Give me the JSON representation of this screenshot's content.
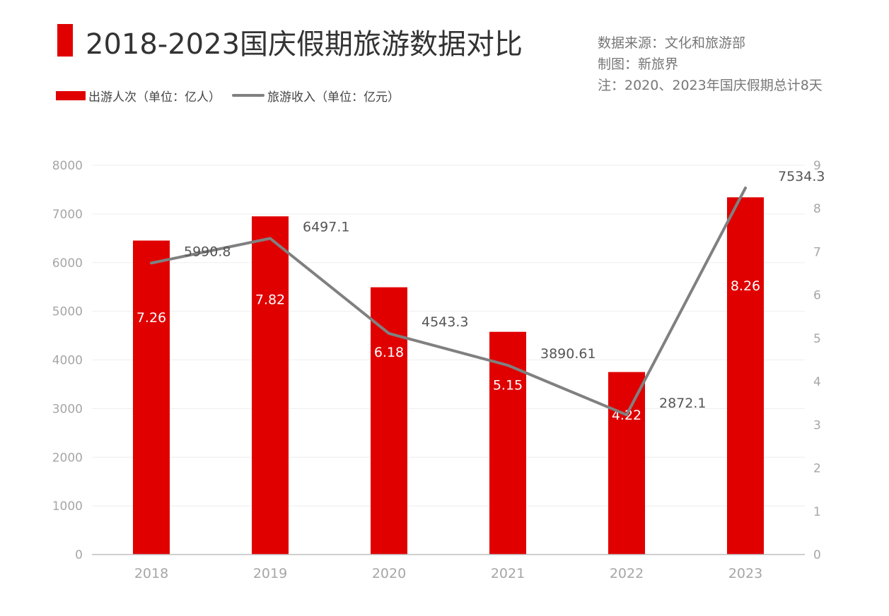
{
  "header": {
    "title": "2018-2023国庆假期旅游数据对比",
    "notes": [
      "数据来源：文化和旅游部",
      "制图：新旅界",
      "注：2020、2023年国庆假期总计8天"
    ]
  },
  "colors": {
    "bar": "#e00000",
    "line": "#808080",
    "axis_text": "#a6a6a6",
    "grid": "#eeeeee",
    "value_label": "#555555",
    "bar_label": "#ffffff"
  },
  "chart_data": {
    "type": "bar",
    "title": "2018-2023国庆假期旅游数据对比",
    "categories": [
      "2018",
      "2019",
      "2020",
      "2021",
      "2022",
      "2023"
    ],
    "series": [
      {
        "name": "出游人次（单位：亿人）",
        "type": "bar",
        "axis": "right",
        "values": [
          7.26,
          7.82,
          6.18,
          5.15,
          4.22,
          8.26
        ],
        "labels": [
          "7.26",
          "7.82",
          "6.18",
          "5.15",
          "4.22",
          "8.26"
        ]
      },
      {
        "name": "旅游收入（单位：亿元）",
        "type": "line",
        "axis": "left",
        "values": [
          5990.8,
          6497.1,
          4543.3,
          3890.61,
          2872.1,
          7534.3
        ],
        "labels": [
          "5990.8",
          "6497.1",
          "4543.3",
          "3890.61",
          "2872.1",
          "7534.3"
        ]
      }
    ],
    "left_axis": {
      "min": 0,
      "max": 8000,
      "ticks": [
        "0",
        "1000",
        "2000",
        "3000",
        "4000",
        "5000",
        "6000",
        "7000",
        "8000"
      ]
    },
    "right_axis": {
      "min": 0,
      "max": 9,
      "ticks": [
        "0",
        "1",
        "2",
        "3",
        "4",
        "5",
        "6",
        "7",
        "8",
        "9"
      ]
    },
    "xlabel": "",
    "ylabel": "",
    "grid": true,
    "legend": "top-left"
  }
}
